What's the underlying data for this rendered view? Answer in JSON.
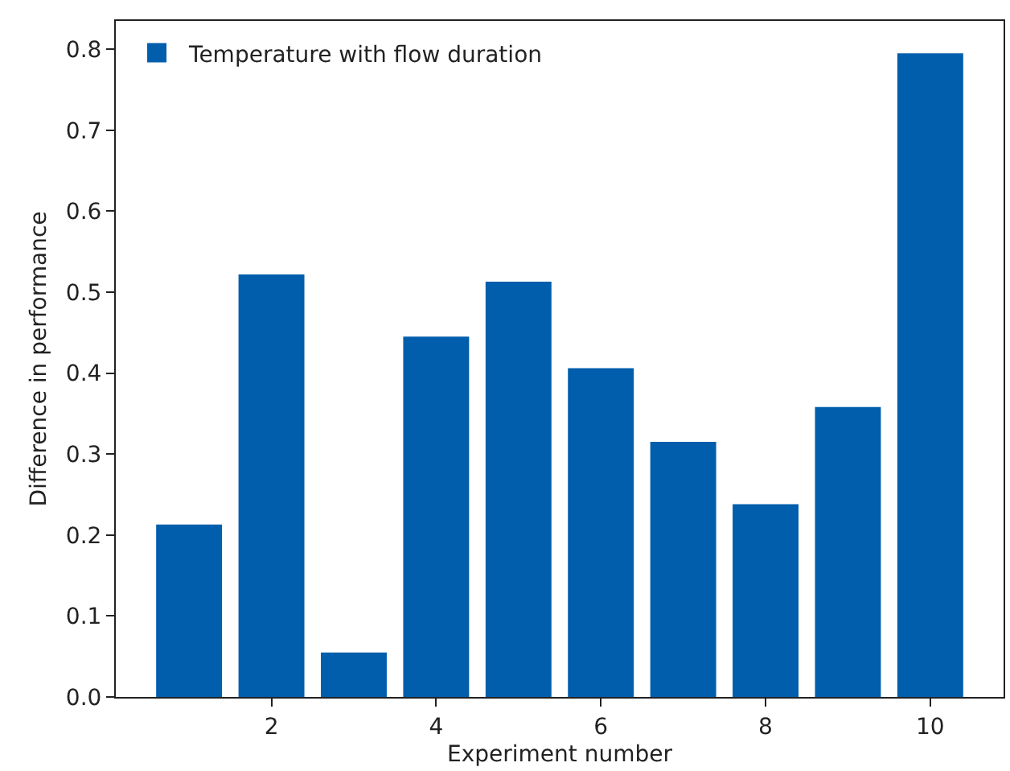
{
  "chart_data": {
    "type": "bar",
    "xlabel": "Experiment number",
    "ylabel": "Difference in performance",
    "x": [
      1,
      2,
      3,
      4,
      5,
      6,
      7,
      8,
      9,
      10
    ],
    "series": [
      {
        "name": "Temperature with flow duration",
        "color": "#005eac",
        "values": [
          0.213,
          0.522,
          0.055,
          0.445,
          0.513,
          0.406,
          0.315,
          0.238,
          0.358,
          0.795
        ]
      }
    ],
    "xlim": [
      0.11,
      10.89
    ],
    "xticks": [
      2,
      4,
      6,
      8,
      10
    ],
    "ylim": [
      0,
      0.835
    ],
    "yticks": [
      {
        "value": 0,
        "label": "0.0"
      },
      0.1,
      0.2,
      0.3,
      0.4,
      0.5,
      0.6,
      0.7,
      0.8
    ],
    "legend": "top left"
  }
}
